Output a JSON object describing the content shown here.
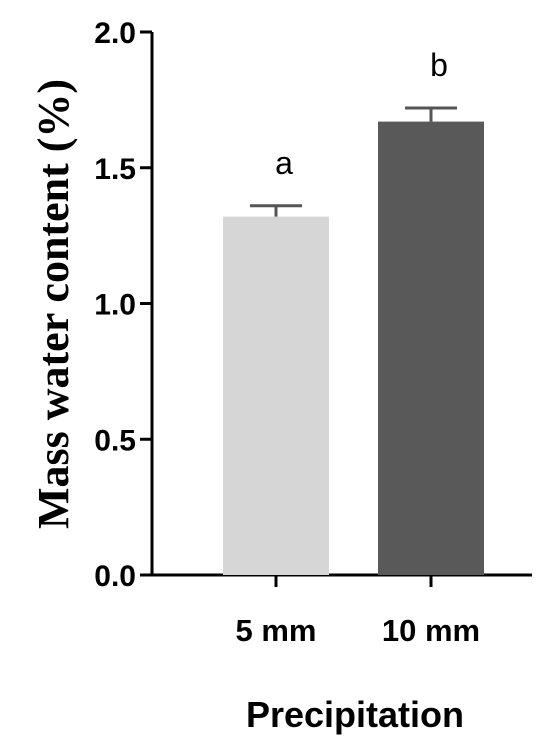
{
  "chart_data": {
    "type": "bar",
    "categories": [
      "5 mm",
      "10 mm"
    ],
    "values": [
      1.32,
      1.67
    ],
    "error": [
      0.04,
      0.05
    ],
    "significance_labels": [
      "a",
      "b"
    ],
    "bar_colors": [
      "#d6d6d6",
      "#595959"
    ],
    "xlabel": "Precipitation",
    "ylabel": "Mass water content (%)",
    "ylim": [
      0,
      2.0
    ],
    "yticks": [
      "0.0",
      "0.5",
      "1.0",
      "1.5",
      "2.0"
    ],
    "grid": false,
    "legend": "none"
  }
}
